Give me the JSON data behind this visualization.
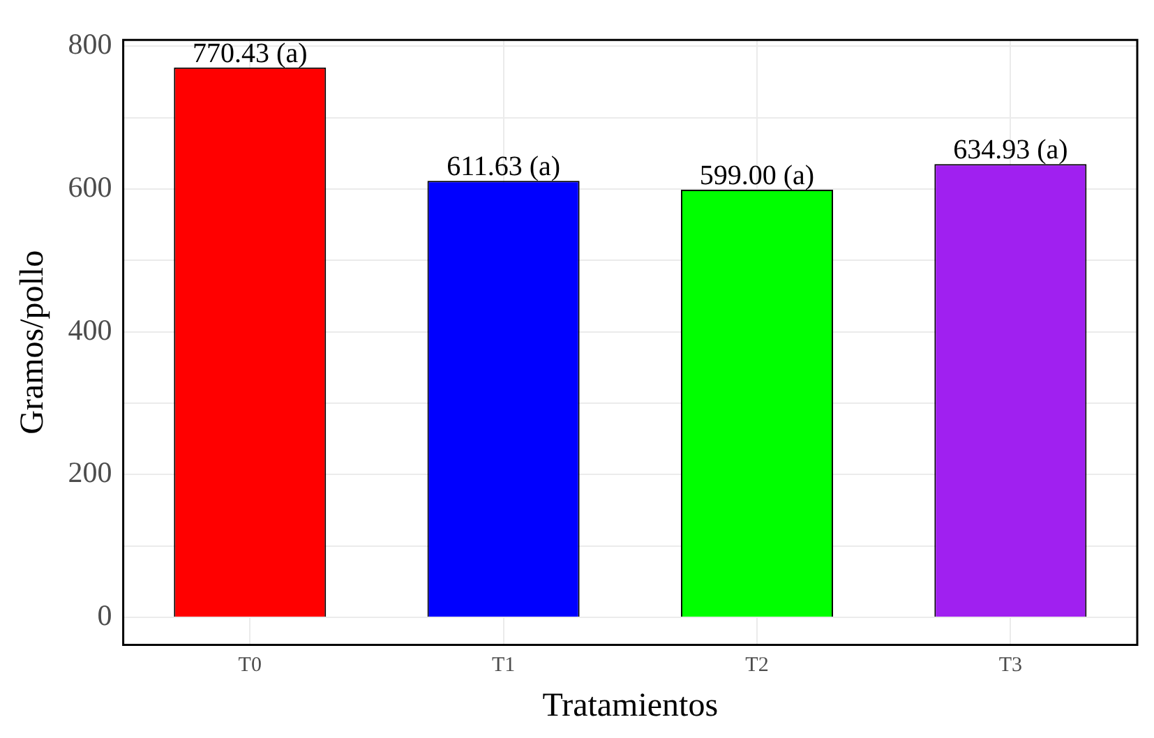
{
  "chart_data": {
    "type": "bar",
    "xlabel": "Tratamientos",
    "ylabel": "Gramos/pollo",
    "categories": [
      "T0",
      "T1",
      "T2",
      "T3"
    ],
    "values": [
      770.43,
      611.63,
      599.0,
      634.93
    ],
    "colors": [
      "#ff0000",
      "#0000ff",
      "#00ff00",
      "#a020f0"
    ],
    "value_labels": [
      "770.43 (a)",
      "611.63 (a)",
      "599.00 (a)",
      "634.93 (a)"
    ],
    "ylim": [
      -38.5,
      809
    ],
    "yticks": [
      0,
      {
        "value": 100,
        "label": null
      },
      200,
      {
        "value": 300,
        "label": null
      },
      400,
      {
        "value": 500,
        "label": null
      },
      600,
      {
        "value": 700,
        "label": null
      },
      800
    ],
    "grid": true,
    "legend": false
  }
}
